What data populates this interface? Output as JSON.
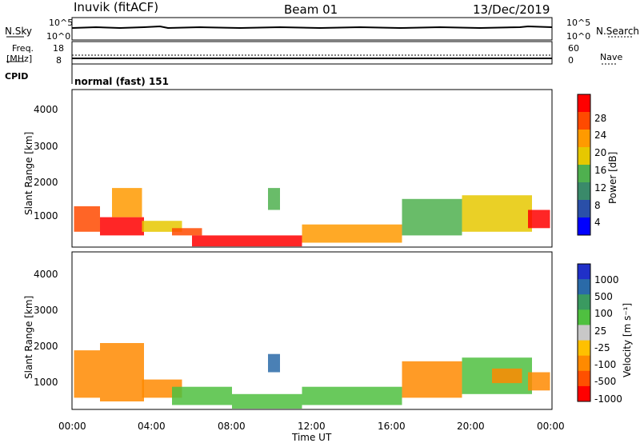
{
  "header": {
    "station": "Inuvik (fitACF)",
    "beam": "Beam 01",
    "date": "13/Dec/2019"
  },
  "status_panels": {
    "nsky_label": "N.Sky",
    "nsky_ticks": [
      "10^5",
      "10^0"
    ],
    "nsearch_label": "N.Search",
    "nsearch_ticks": [
      "10^5",
      "10^0"
    ],
    "freq_label": "Freq.",
    "freq_unit": "[MHz]",
    "freq_ticks": [
      "18",
      "8"
    ],
    "nave_label": "Nave",
    "nave_ticks": [
      "60",
      "0"
    ],
    "cpid_label": "CPID",
    "cpid_text": "normal (fast) 151"
  },
  "chart_data": [
    {
      "type": "heatmap",
      "name": "power",
      "ylabel": "Slant Range [km]",
      "yticks": [
        "1000",
        "2000",
        "3000",
        "4000"
      ],
      "ylim": [
        180,
        4500
      ],
      "xlim_hours": [
        0,
        24
      ],
      "colorbar_label": "Power [dB]",
      "colorbar_ticks": [
        "28",
        "24",
        "20",
        "16",
        "12",
        "8",
        "4"
      ],
      "colorbar_colors": [
        "#0000ff",
        "#2a4fa8",
        "#3a8a6a",
        "#4fb04f",
        "#e6c800",
        "#ff9a00",
        "#ff4a00",
        "#ff0000"
      ],
      "regions": [
        {
          "x0": 0.1,
          "x1": 1.4,
          "y0": 600,
          "y1": 1300,
          "level": 6
        },
        {
          "x0": 1.4,
          "x1": 3.6,
          "y0": 500,
          "y1": 1000,
          "level": 7
        },
        {
          "x0": 2.0,
          "x1": 3.5,
          "y0": 1000,
          "y1": 1800,
          "level": 5
        },
        {
          "x0": 3.5,
          "x1": 5.5,
          "y0": 600,
          "y1": 900,
          "level": 4
        },
        {
          "x0": 5.0,
          "x1": 6.5,
          "y0": 500,
          "y1": 700,
          "level": 6
        },
        {
          "x0": 6.0,
          "x1": 11.5,
          "y0": 200,
          "y1": 500,
          "level": 7
        },
        {
          "x0": 9.8,
          "x1": 10.4,
          "y0": 1200,
          "y1": 1800,
          "level": 3
        },
        {
          "x0": 11.5,
          "x1": 16.5,
          "y0": 300,
          "y1": 800,
          "level": 5
        },
        {
          "x0": 16.5,
          "x1": 19.5,
          "y0": 500,
          "y1": 1500,
          "level": 3
        },
        {
          "x0": 19.5,
          "x1": 23.0,
          "y0": 600,
          "y1": 1600,
          "level": 4
        },
        {
          "x0": 22.8,
          "x1": 23.9,
          "y0": 700,
          "y1": 1200,
          "level": 7
        }
      ]
    },
    {
      "type": "heatmap",
      "name": "velocity",
      "ylabel": "Slant Range [km]",
      "yticks": [
        "1000",
        "2000",
        "3000",
        "4000"
      ],
      "ylim": [
        180,
        4500
      ],
      "xlim_hours": [
        0,
        24
      ],
      "xlabel": "Time UT",
      "xticks": [
        "00:00",
        "04:00",
        "08:00",
        "12:00",
        "16:00",
        "20:00",
        "00:00"
      ],
      "colorbar_label": "Velocity [m s⁻¹]",
      "colorbar_ticks": [
        "1000",
        "500",
        "100",
        "25",
        "-25",
        "-100",
        "-500",
        "-1000"
      ],
      "colorbar_colors": [
        "#ff0000",
        "#ff5000",
        "#ff8a00",
        "#ffc000",
        "#c8c8c8",
        "#4fc040",
        "#3a9a60",
        "#2a6aa8",
        "#2030c8"
      ],
      "regions": [
        {
          "x0": 0.1,
          "x1": 1.4,
          "y0": 500,
          "y1": 1800,
          "level": 2
        },
        {
          "x0": 1.4,
          "x1": 3.6,
          "y0": 400,
          "y1": 2000,
          "level": 2
        },
        {
          "x0": 3.5,
          "x1": 5.5,
          "y0": 500,
          "y1": 1000,
          "level": 2
        },
        {
          "x0": 5.0,
          "x1": 8.0,
          "y0": 300,
          "y1": 800,
          "level": 5
        },
        {
          "x0": 8.0,
          "x1": 11.5,
          "y0": 200,
          "y1": 600,
          "level": 5
        },
        {
          "x0": 9.8,
          "x1": 10.4,
          "y0": 1200,
          "y1": 1700,
          "level": 7
        },
        {
          "x0": 11.5,
          "x1": 16.5,
          "y0": 300,
          "y1": 800,
          "level": 5
        },
        {
          "x0": 16.5,
          "x1": 19.5,
          "y0": 500,
          "y1": 1500,
          "level": 2
        },
        {
          "x0": 19.5,
          "x1": 23.0,
          "y0": 600,
          "y1": 1600,
          "level": 5
        },
        {
          "x0": 21.0,
          "x1": 22.5,
          "y0": 900,
          "y1": 1300,
          "level": 2
        },
        {
          "x0": 22.8,
          "x1": 23.9,
          "y0": 700,
          "y1": 1200,
          "level": 2
        }
      ]
    }
  ]
}
